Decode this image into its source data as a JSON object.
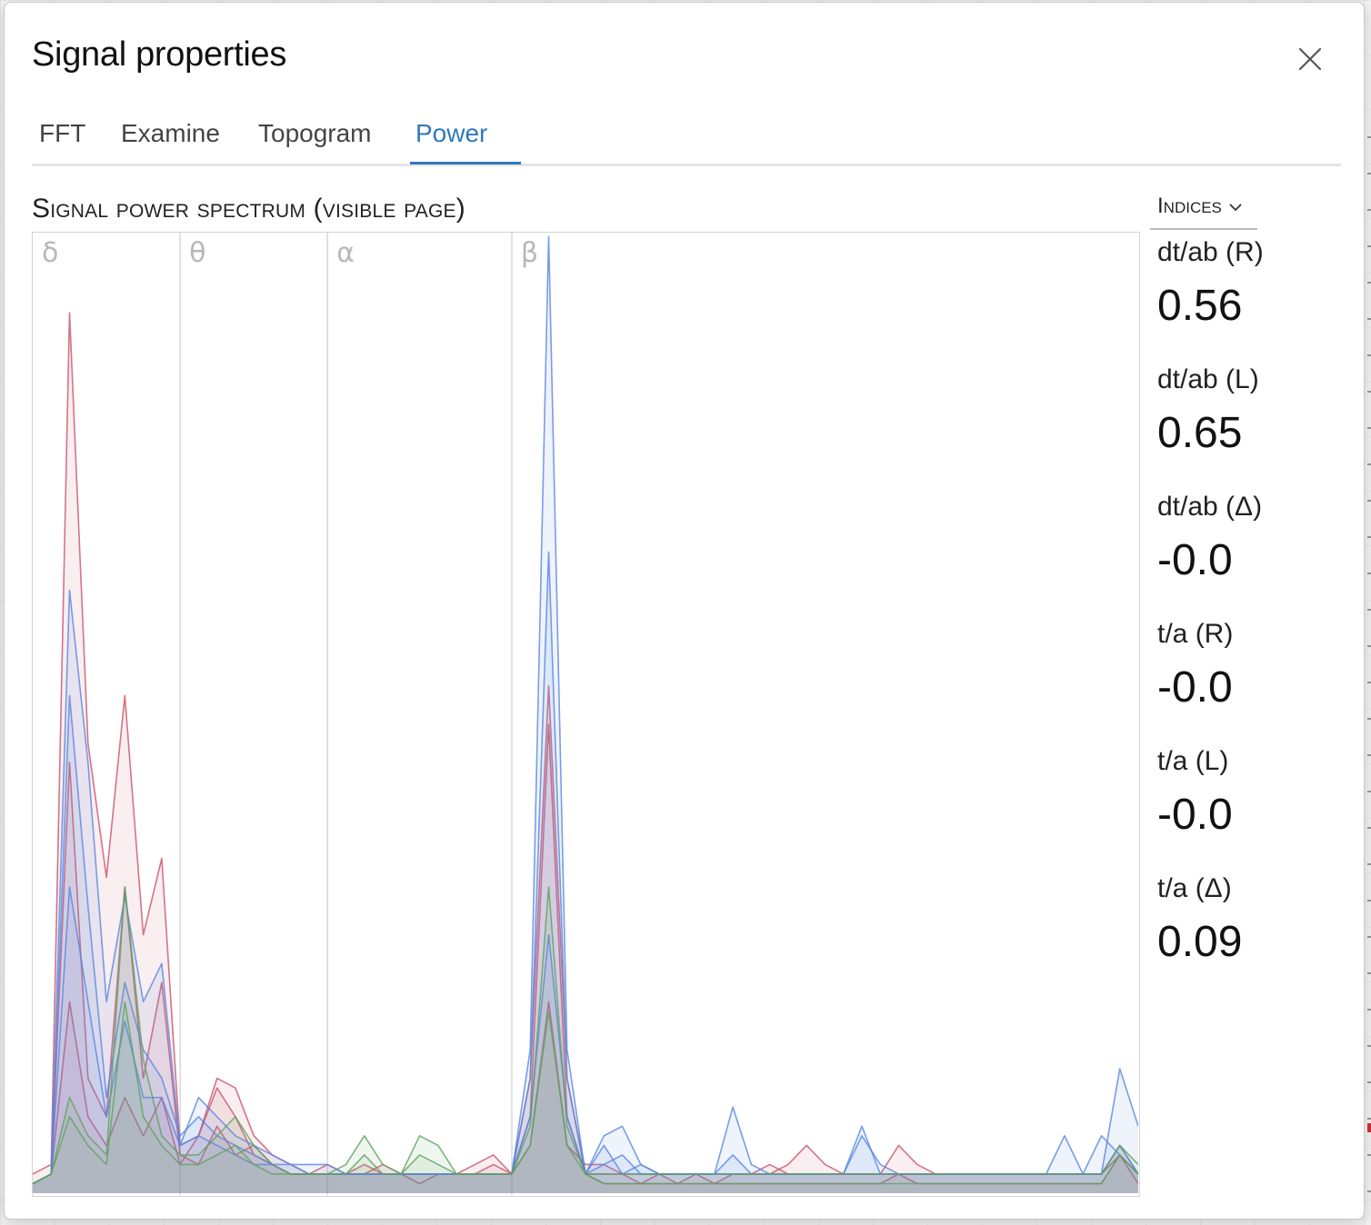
{
  "dialog": {
    "title": "Signal properties",
    "close_icon": "close-icon"
  },
  "tabs": [
    {
      "label": "FFT",
      "active": false
    },
    {
      "label": "Examine",
      "active": false
    },
    {
      "label": "Topogram",
      "active": false
    },
    {
      "label": "Power",
      "active": true
    }
  ],
  "section": {
    "title": "Signal power spectrum (visible page)"
  },
  "indices_dropdown": {
    "label": "Indices",
    "icon": "chevron-down-icon"
  },
  "indices": [
    {
      "label": "dt/ab (R)",
      "value": "0.56"
    },
    {
      "label": "dt/ab (L)",
      "value": "0.65"
    },
    {
      "label": "dt/ab (Δ)",
      "value": "-0.0"
    },
    {
      "label": "t/a (R)",
      "value": "-0.0"
    },
    {
      "label": "t/a (L)",
      "value": "-0.0"
    },
    {
      "label": "t/a (Δ)",
      "value": "0.09"
    }
  ],
  "colors": {
    "accent": "#2f79bb",
    "red_series": "#c8546a",
    "blue_series": "#5a86de",
    "green_series": "#5fa35f"
  },
  "chart_data": {
    "type": "area",
    "bands": [
      {
        "label": "δ",
        "from": 0,
        "to": 4
      },
      {
        "label": "θ",
        "from": 4,
        "to": 8
      },
      {
        "label": "α",
        "from": 8,
        "to": 13
      },
      {
        "label": "β",
        "from": 13,
        "to": 30
      }
    ],
    "x": [
      0,
      0.5,
      1,
      1.5,
      2,
      2.5,
      3,
      3.5,
      4,
      4.5,
      5,
      5.5,
      6,
      6.5,
      7,
      7.5,
      8,
      8.5,
      9,
      9.5,
      10,
      10.5,
      11,
      11.5,
      12,
      12.5,
      13,
      13.5,
      14,
      14.5,
      15,
      15.5,
      16,
      16.5,
      17,
      17.5,
      18,
      18.5,
      19,
      19.5,
      20,
      20.5,
      21,
      21.5,
      22,
      22.5,
      23,
      23.5,
      24,
      24.5,
      25,
      25.5,
      26,
      26.5,
      27,
      27.5,
      28,
      28.5,
      29,
      29.5,
      30
    ],
    "ylim": [
      0,
      1
    ],
    "series": [
      {
        "color": "red",
        "values": [
          0.02,
          0.03,
          0.92,
          0.47,
          0.33,
          0.52,
          0.27,
          0.35,
          0.05,
          0.06,
          0.12,
          0.11,
          0.06,
          0.04,
          0.03,
          0.02,
          0.03,
          0.02,
          0.02,
          0.03,
          0.02,
          0.02,
          0.02,
          0.02,
          0.03,
          0.04,
          0.02,
          0.12,
          0.53,
          0.12,
          0.02,
          0.02,
          0.02,
          0.01,
          0.02,
          0.01,
          0.02,
          0.01,
          0.02,
          0.02,
          0.03,
          0.02,
          0.02,
          0.02,
          0.02,
          0.02,
          0.02,
          0.02,
          0.02,
          0.02,
          0.02,
          0.02,
          0.02,
          0.02,
          0.02,
          0.02,
          0.02,
          0.02,
          0.02,
          0.05,
          0.02
        ]
      },
      {
        "color": "red",
        "values": [
          0.01,
          0.02,
          0.45,
          0.12,
          0.08,
          0.32,
          0.12,
          0.22,
          0.04,
          0.03,
          0.07,
          0.04,
          0.05,
          0.03,
          0.02,
          0.02,
          0.02,
          0.02,
          0.02,
          0.02,
          0.02,
          0.01,
          0.02,
          0.02,
          0.02,
          0.02,
          0.02,
          0.08,
          0.49,
          0.08,
          0.02,
          0.01,
          0.01,
          0.01,
          0.01,
          0.01,
          0.01,
          0.01,
          0.01,
          0.01,
          0.01,
          0.01,
          0.01,
          0.01,
          0.01,
          0.01,
          0.01,
          0.02,
          0.01,
          0.01,
          0.01,
          0.01,
          0.01,
          0.01,
          0.01,
          0.01,
          0.01,
          0.01,
          0.01,
          0.04,
          0.01
        ]
      },
      {
        "color": "red",
        "values": [
          0.01,
          0.02,
          0.2,
          0.08,
          0.05,
          0.1,
          0.06,
          0.1,
          0.03,
          0.06,
          0.11,
          0.08,
          0.04,
          0.03,
          0.02,
          0.02,
          0.02,
          0.02,
          0.03,
          0.02,
          0.02,
          0.02,
          0.02,
          0.02,
          0.02,
          0.03,
          0.02,
          0.05,
          0.2,
          0.05,
          0.03,
          0.03,
          0.02,
          0.02,
          0.02,
          0.02,
          0.02,
          0.02,
          0.02,
          0.02,
          0.02,
          0.03,
          0.05,
          0.03,
          0.02,
          0.02,
          0.02,
          0.05,
          0.03,
          0.02,
          0.02,
          0.02,
          0.02,
          0.02,
          0.02,
          0.02,
          0.02,
          0.02,
          0.02,
          0.04,
          0.02
        ]
      },
      {
        "color": "blue",
        "values": [
          0.01,
          0.02,
          0.63,
          0.45,
          0.2,
          0.31,
          0.2,
          0.24,
          0.05,
          0.1,
          0.08,
          0.06,
          0.05,
          0.04,
          0.03,
          0.03,
          0.03,
          0.02,
          0.02,
          0.02,
          0.02,
          0.02,
          0.02,
          0.02,
          0.02,
          0.02,
          0.02,
          0.15,
          1.0,
          0.15,
          0.02,
          0.05,
          0.02,
          0.03,
          0.02,
          0.02,
          0.02,
          0.02,
          0.02,
          0.02,
          0.02,
          0.02,
          0.02,
          0.02,
          0.02,
          0.02,
          0.02,
          0.02,
          0.02,
          0.02,
          0.02,
          0.02,
          0.02,
          0.02,
          0.02,
          0.02,
          0.02,
          0.02,
          0.02,
          0.13,
          0.07
        ]
      },
      {
        "color": "blue",
        "values": [
          0.01,
          0.02,
          0.52,
          0.3,
          0.1,
          0.22,
          0.15,
          0.12,
          0.06,
          0.08,
          0.06,
          0.05,
          0.04,
          0.03,
          0.03,
          0.02,
          0.02,
          0.02,
          0.02,
          0.02,
          0.02,
          0.02,
          0.02,
          0.02,
          0.02,
          0.02,
          0.02,
          0.12,
          0.67,
          0.12,
          0.02,
          0.06,
          0.07,
          0.03,
          0.02,
          0.02,
          0.02,
          0.02,
          0.09,
          0.03,
          0.02,
          0.02,
          0.02,
          0.02,
          0.02,
          0.06,
          0.03,
          0.02,
          0.02,
          0.02,
          0.02,
          0.02,
          0.02,
          0.02,
          0.02,
          0.02,
          0.02,
          0.02,
          0.06,
          0.04,
          0.02
        ]
      },
      {
        "color": "blue",
        "values": [
          0.01,
          0.02,
          0.32,
          0.2,
          0.08,
          0.18,
          0.1,
          0.1,
          0.05,
          0.06,
          0.05,
          0.04,
          0.03,
          0.03,
          0.02,
          0.02,
          0.02,
          0.02,
          0.02,
          0.02,
          0.02,
          0.02,
          0.02,
          0.02,
          0.02,
          0.02,
          0.02,
          0.08,
          0.27,
          0.08,
          0.02,
          0.03,
          0.04,
          0.02,
          0.02,
          0.02,
          0.02,
          0.02,
          0.04,
          0.02,
          0.02,
          0.02,
          0.02,
          0.02,
          0.02,
          0.07,
          0.02,
          0.02,
          0.02,
          0.02,
          0.02,
          0.02,
          0.02,
          0.02,
          0.02,
          0.02,
          0.06,
          0.02,
          0.02,
          0.05,
          0.02
        ]
      },
      {
        "color": "green",
        "values": [
          0.01,
          0.02,
          0.1,
          0.06,
          0.04,
          0.32,
          0.14,
          0.06,
          0.04,
          0.04,
          0.06,
          0.08,
          0.05,
          0.03,
          0.02,
          0.02,
          0.02,
          0.03,
          0.06,
          0.03,
          0.02,
          0.06,
          0.05,
          0.02,
          0.02,
          0.02,
          0.02,
          0.07,
          0.32,
          0.07,
          0.02,
          0.02,
          0.02,
          0.02,
          0.02,
          0.02,
          0.02,
          0.02,
          0.02,
          0.02,
          0.02,
          0.02,
          0.02,
          0.02,
          0.02,
          0.02,
          0.02,
          0.02,
          0.02,
          0.02,
          0.02,
          0.02,
          0.02,
          0.02,
          0.02,
          0.02,
          0.02,
          0.02,
          0.02,
          0.05,
          0.03
        ]
      },
      {
        "color": "green",
        "values": [
          0.01,
          0.02,
          0.08,
          0.05,
          0.03,
          0.2,
          0.08,
          0.05,
          0.03,
          0.03,
          0.04,
          0.05,
          0.03,
          0.02,
          0.02,
          0.02,
          0.02,
          0.02,
          0.04,
          0.02,
          0.02,
          0.04,
          0.03,
          0.02,
          0.02,
          0.02,
          0.02,
          0.05,
          0.19,
          0.05,
          0.02,
          0.01,
          0.01,
          0.01,
          0.01,
          0.01,
          0.01,
          0.01,
          0.01,
          0.01,
          0.01,
          0.01,
          0.01,
          0.01,
          0.01,
          0.01,
          0.01,
          0.01,
          0.01,
          0.01,
          0.01,
          0.01,
          0.01,
          0.01,
          0.01,
          0.01,
          0.01,
          0.01,
          0.01,
          0.04,
          0.02
        ]
      }
    ]
  }
}
